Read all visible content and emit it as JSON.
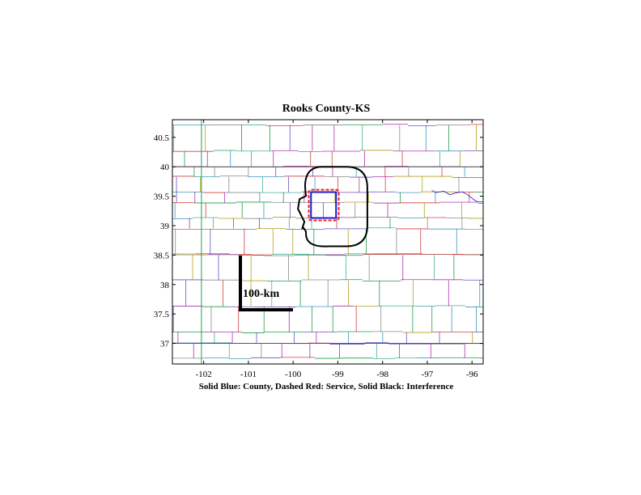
{
  "title": "Rooks County-KS",
  "caption": "Solid Blue: County, Dashed Red: Service, Solid Black: Interference",
  "scale_bar": {
    "label": "100-km",
    "length_km": 100
  },
  "axes": {
    "x_range": [
      -102.7,
      -95.75
    ],
    "y_range": [
      36.65,
      40.8
    ],
    "x_ticks": [
      -102,
      -101,
      -100,
      -99,
      -98,
      -97,
      -96
    ],
    "y_ticks": [
      37,
      37.5,
      38,
      38.5,
      39,
      39.5,
      40,
      40.5
    ]
  },
  "county": {
    "name": "Rooks County",
    "state": "KS",
    "lon": [
      -99.6,
      -99.04
    ],
    "lat": [
      39.13,
      39.57
    ]
  },
  "service_area": {
    "lon": [
      -99.65,
      -98.98
    ],
    "lat": [
      39.09,
      39.61
    ]
  },
  "interference_area": {
    "lon": [
      -99.82,
      -98.34
    ],
    "lat": [
      38.65,
      40.0
    ]
  },
  "colors": {
    "county": "#1a1acc",
    "service": "#ee2222",
    "interference": "#000000",
    "boundaries": [
      "#8a8a8a",
      "#1e9e4a",
      "#b030b0",
      "#d04040",
      "#3a9ac0",
      "#b0a020",
      "#6a50c0",
      "#40b0a0"
    ]
  }
}
